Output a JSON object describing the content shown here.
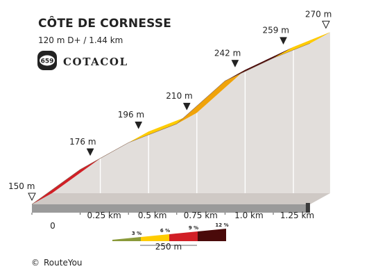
{
  "header": {
    "title": "CÔTE DE CORNESSE",
    "subtitle": "120 m D+ / 1.44 km",
    "badge_number": "659",
    "brand": "COTACOL"
  },
  "footer": {
    "copyright_symbol": "©",
    "copyright_text": "RouteYou"
  },
  "chart_data": {
    "type": "area",
    "x": [
      0,
      0.25,
      0.5,
      0.75,
      1.0,
      1.25,
      1.44
    ],
    "y": [
      150,
      176,
      196,
      210,
      242,
      259,
      270
    ],
    "x_tick_labels": [
      "0",
      "0.25 km",
      "0.5 km",
      "0.75 km",
      "1.0 km",
      "1.25 km"
    ],
    "elevation_labels": [
      "150 m",
      "176 m",
      "196 m",
      "210 m",
      "242 m",
      "259 m",
      "270 m"
    ],
    "segment_colors": [
      "#d11f26",
      "#f0a30a",
      "#ffcc00",
      "#f0a30a",
      "#4a0a0a",
      "#f0a30a",
      "#ffcc00"
    ],
    "legend": {
      "items": [
        {
          "label": "3 %",
          "color": "#8a9a3a"
        },
        {
          "label": "6 %",
          "color": "#ffcc00"
        },
        {
          "label": "9 %",
          "color": "#d11f26"
        },
        {
          "label": "12 %",
          "color": "#4a0a0a"
        }
      ],
      "scale_label": "250 m"
    },
    "colors": {
      "side": "#e2dedb",
      "base": "#9a9a9a",
      "base_dark": "#3a3a3a",
      "marker": "#222222"
    }
  }
}
